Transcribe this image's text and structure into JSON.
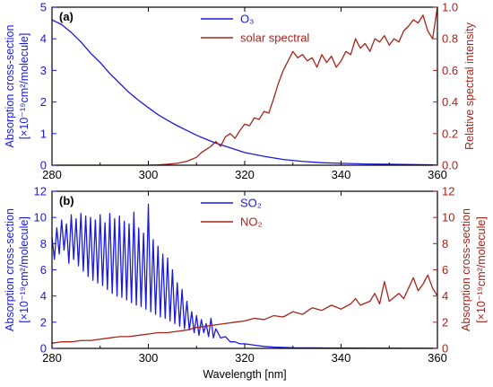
{
  "colors": {
    "blue": "#1a1adc",
    "red": "#a8231a",
    "axis": "#000000"
  },
  "chart_data": [
    {
      "type": "line",
      "panel_label": "(a)",
      "xlim": [
        280,
        360
      ],
      "x_ticks": [
        280,
        300,
        320,
        340,
        360
      ],
      "ylim_left": [
        0,
        5
      ],
      "y_ticks_left": [
        0,
        1,
        2,
        3,
        4,
        5
      ],
      "ylim_right": [
        0,
        1.0
      ],
      "y_ticks_right": [
        "0.0",
        "0.2",
        "0.4",
        "0.6",
        "0.8",
        "1.0"
      ],
      "ylabel_left_line1": "Absorption cross-section",
      "ylabel_left_line2": "[×10⁻¹⁹cm²/molecule]",
      "ylabel_right": "Relative spectral intensity",
      "legend_position": "top-center",
      "series": [
        {
          "name": "O₃",
          "axis": "left",
          "color_key": "blue",
          "points": [
            [
              280,
              4.6
            ],
            [
              282,
              4.45
            ],
            [
              284,
              4.2
            ],
            [
              286,
              3.9
            ],
            [
              288,
              3.55
            ],
            [
              290,
              3.25
            ],
            [
              292,
              2.9
            ],
            [
              294,
              2.6
            ],
            [
              296,
              2.3
            ],
            [
              298,
              2.05
            ],
            [
              300,
              1.82
            ],
            [
              302,
              1.6
            ],
            [
              304,
              1.42
            ],
            [
              306,
              1.25
            ],
            [
              308,
              1.1
            ],
            [
              310,
              0.95
            ],
            [
              312,
              0.82
            ],
            [
              314,
              0.7
            ],
            [
              316,
              0.6
            ],
            [
              318,
              0.5
            ],
            [
              320,
              0.4
            ],
            [
              324,
              0.28
            ],
            [
              328,
              0.18
            ],
            [
              332,
              0.12
            ],
            [
              336,
              0.08
            ],
            [
              340,
              0.06
            ],
            [
              345,
              0.04
            ],
            [
              350,
              0.03
            ],
            [
              355,
              0.02
            ],
            [
              360,
              0.01
            ]
          ]
        },
        {
          "name": "solar spectral",
          "axis": "right",
          "color_key": "red",
          "points": [
            [
              280,
              0
            ],
            [
              300,
              0
            ],
            [
              302,
              0.002
            ],
            [
              304,
              0.006
            ],
            [
              306,
              0.012
            ],
            [
              308,
              0.025
            ],
            [
              310,
              0.05
            ],
            [
              311,
              0.08
            ],
            [
              312,
              0.1
            ],
            [
              313,
              0.12
            ],
            [
              314,
              0.15
            ],
            [
              315,
              0.12
            ],
            [
              316,
              0.18
            ],
            [
              317,
              0.2
            ],
            [
              318,
              0.17
            ],
            [
              319,
              0.22
            ],
            [
              320,
              0.26
            ],
            [
              321,
              0.25
            ],
            [
              322,
              0.3
            ],
            [
              323,
              0.29
            ],
            [
              324,
              0.34
            ],
            [
              325,
              0.33
            ],
            [
              326,
              0.42
            ],
            [
              327,
              0.52
            ],
            [
              328,
              0.6
            ],
            [
              329,
              0.66
            ],
            [
              330,
              0.72
            ],
            [
              331,
              0.68
            ],
            [
              332,
              0.7
            ],
            [
              333,
              0.66
            ],
            [
              334,
              0.68
            ],
            [
              335,
              0.62
            ],
            [
              336,
              0.7
            ],
            [
              337,
              0.65
            ],
            [
              338,
              0.69
            ],
            [
              339,
              0.62
            ],
            [
              340,
              0.66
            ],
            [
              341,
              0.72
            ],
            [
              342,
              0.7
            ],
            [
              343,
              0.8
            ],
            [
              344,
              0.74
            ],
            [
              345,
              0.77
            ],
            [
              346,
              0.72
            ],
            [
              347,
              0.8
            ],
            [
              348,
              0.78
            ],
            [
              349,
              0.82
            ],
            [
              350,
              0.76
            ],
            [
              351,
              0.8
            ],
            [
              352,
              0.78
            ],
            [
              353,
              0.85
            ],
            [
              354,
              0.88
            ],
            [
              355,
              0.92
            ],
            [
              356,
              0.9
            ],
            [
              357,
              0.95
            ],
            [
              358,
              0.85
            ],
            [
              359,
              0.8
            ],
            [
              360,
              1.0
            ]
          ]
        }
      ]
    },
    {
      "type": "line",
      "panel_label": "(b)",
      "xlim": [
        280,
        360
      ],
      "x_ticks": [
        280,
        300,
        320,
        340,
        360
      ],
      "xlabel": "Wavelength [nm]",
      "ylim_left": [
        0,
        12
      ],
      "y_ticks_left": [
        0,
        2,
        4,
        6,
        8,
        10,
        12
      ],
      "ylim_right": [
        0,
        12
      ],
      "y_ticks_right": [
        0,
        2,
        4,
        6,
        8,
        10,
        12
      ],
      "ylabel_left_line1": "Absorption cross-section",
      "ylabel_left_line2": "[×10⁻¹⁹cm²/molecule]",
      "ylabel_right_line1": "Absorption cross-section",
      "ylabel_right_line2": "[×10⁻¹⁹cm²/molecule]",
      "legend_position": "top-center",
      "series": [
        {
          "name": "SO₂",
          "axis": "left",
          "color_key": "blue",
          "points": [
            [
              280,
              8.5
            ],
            [
              280.5,
              6.8
            ],
            [
              281,
              9.2
            ],
            [
              281.5,
              7.2
            ],
            [
              282,
              9.8
            ],
            [
              282.5,
              7.5
            ],
            [
              283,
              9.5
            ],
            [
              283.5,
              6.5
            ],
            [
              284,
              10.2
            ],
            [
              284.5,
              6.8
            ],
            [
              285,
              9.9
            ],
            [
              285.5,
              6.3
            ],
            [
              286,
              10.3
            ],
            [
              286.5,
              5.9
            ],
            [
              287,
              10.1
            ],
            [
              287.5,
              5.5
            ],
            [
              288,
              10.0
            ],
            [
              288.5,
              5.2
            ],
            [
              289,
              9.8
            ],
            [
              289.5,
              5.0
            ],
            [
              290,
              10.2
            ],
            [
              290.5,
              4.8
            ],
            [
              291,
              9.6
            ],
            [
              291.5,
              4.5
            ],
            [
              292,
              10.3
            ],
            [
              292.5,
              4.2
            ],
            [
              293,
              9.9
            ],
            [
              293.5,
              4.0
            ],
            [
              294,
              10.1
            ],
            [
              294.5,
              3.9
            ],
            [
              295,
              9.7
            ],
            [
              295.5,
              3.7
            ],
            [
              296,
              9.5
            ],
            [
              296.5,
              3.5
            ],
            [
              297,
              10.4
            ],
            [
              297.5,
              3.3
            ],
            [
              298,
              9.2
            ],
            [
              298.5,
              3.2
            ],
            [
              299,
              8.8
            ],
            [
              299.5,
              3.0
            ],
            [
              300,
              11.0
            ],
            [
              300.5,
              2.8
            ],
            [
              301,
              8.3
            ],
            [
              301.5,
              2.6
            ],
            [
              302,
              7.8
            ],
            [
              302.5,
              2.4
            ],
            [
              303,
              7.2
            ],
            [
              303.5,
              2.3
            ],
            [
              304,
              6.9
            ],
            [
              304.5,
              2.1
            ],
            [
              305,
              6.0
            ],
            [
              305.5,
              1.9
            ],
            [
              306,
              5.0
            ],
            [
              306.5,
              1.7
            ],
            [
              307,
              4.5
            ],
            [
              307.5,
              1.5
            ],
            [
              308,
              3.6
            ],
            [
              308.5,
              1.4
            ],
            [
              309,
              2.8
            ],
            [
              309.5,
              1.2
            ],
            [
              310,
              2.5
            ],
            [
              310.5,
              1.0
            ],
            [
              311,
              2.2
            ],
            [
              311.5,
              1.2
            ],
            [
              312,
              1.9
            ],
            [
              312.5,
              0.9
            ],
            [
              313,
              2.3
            ],
            [
              313.5,
              0.8
            ],
            [
              314,
              1.5
            ],
            [
              315,
              0.8
            ],
            [
              316,
              0.9
            ],
            [
              317,
              0.5
            ],
            [
              318,
              0.5
            ],
            [
              319,
              0.35
            ],
            [
              320,
              0.35
            ],
            [
              322,
              0.25
            ],
            [
              324,
              0.15
            ],
            [
              326,
              0.1
            ],
            [
              330,
              0.05
            ],
            [
              340,
              0.02
            ],
            [
              360,
              0.01
            ]
          ]
        },
        {
          "name": "NO₂",
          "axis": "right",
          "color_key": "red",
          "points": [
            [
              280,
              0.4
            ],
            [
              282,
              0.5
            ],
            [
              284,
              0.5
            ],
            [
              286,
              0.6
            ],
            [
              288,
              0.6
            ],
            [
              290,
              0.7
            ],
            [
              292,
              0.8
            ],
            [
              294,
              0.9
            ],
            [
              296,
              0.9
            ],
            [
              298,
              1.0
            ],
            [
              300,
              1.1
            ],
            [
              302,
              1.2
            ],
            [
              304,
              1.2
            ],
            [
              306,
              1.3
            ],
            [
              308,
              1.4
            ],
            [
              310,
              1.6
            ],
            [
              312,
              1.7
            ],
            [
              314,
              1.8
            ],
            [
              316,
              1.9
            ],
            [
              318,
              2.0
            ],
            [
              320,
              2.1
            ],
            [
              322,
              2.3
            ],
            [
              324,
              2.2
            ],
            [
              326,
              2.5
            ],
            [
              328,
              2.4
            ],
            [
              330,
              2.8
            ],
            [
              332,
              2.6
            ],
            [
              334,
              3.1
            ],
            [
              336,
              2.9
            ],
            [
              338,
              3.3
            ],
            [
              340,
              3.0
            ],
            [
              342,
              3.4
            ],
            [
              343,
              3.8
            ],
            [
              344,
              3.3
            ],
            [
              346,
              3.6
            ],
            [
              347,
              4.2
            ],
            [
              348,
              3.4
            ],
            [
              349,
              5.1
            ],
            [
              350,
              3.6
            ],
            [
              352,
              4.2
            ],
            [
              353,
              3.8
            ],
            [
              355,
              5.4
            ],
            [
              356,
              4.4
            ],
            [
              357,
              4.9
            ],
            [
              358,
              5.6
            ],
            [
              359,
              4.6
            ],
            [
              360,
              4.0
            ]
          ]
        }
      ]
    }
  ]
}
